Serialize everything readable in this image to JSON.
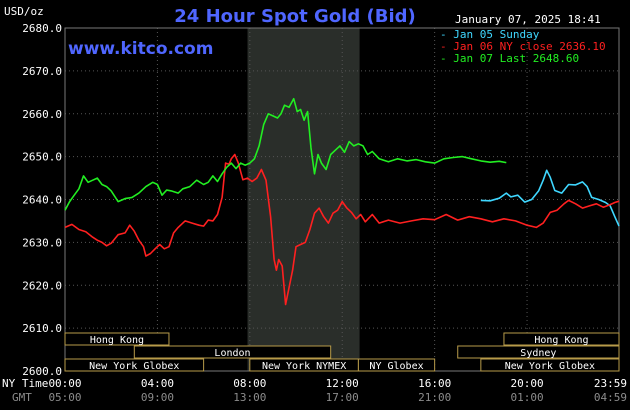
{
  "chart_data": {
    "type": "line",
    "title": "24 Hour Spot Gold (Bid)",
    "website": "www.kitco.com",
    "timestamp": "January 07, 2025 18:41",
    "ylabel": "USD/oz",
    "ylim": [
      2600,
      2680
    ],
    "yticks": [
      "2680.0",
      "2670.0",
      "2660.0",
      "2650.0",
      "2640.0",
      "2630.0",
      "2620.0",
      "2610.0",
      "2600.0"
    ],
    "x_ny_label": "NY Time",
    "x_gmt_label": "GMT",
    "x_ny_ticks": [
      "00:00",
      "04:00",
      "08:00",
      "12:00",
      "16:00",
      "20:00",
      "23:59"
    ],
    "x_gmt_ticks": [
      "05:00",
      "09:00",
      "13:00",
      "17:00",
      "21:00",
      "01:00",
      "04:59"
    ],
    "grid": true,
    "legend_position": "top-right",
    "highlight_range_hours": [
      7.9,
      12.75
    ],
    "series": [
      {
        "name": "Jan 05 Sunday",
        "color": "#3fd7ff",
        "points": [
          [
            18.0,
            2639.8
          ],
          [
            18.4,
            2639.7
          ],
          [
            18.8,
            2640.3
          ],
          [
            19.1,
            2641.5
          ],
          [
            19.3,
            2640.6
          ],
          [
            19.6,
            2641.0
          ],
          [
            19.9,
            2639.4
          ],
          [
            20.2,
            2640.0
          ],
          [
            20.5,
            2642.0
          ],
          [
            20.7,
            2644.5
          ],
          [
            20.85,
            2646.8
          ],
          [
            21.0,
            2645.2
          ],
          [
            21.2,
            2642.1
          ],
          [
            21.5,
            2641.5
          ],
          [
            21.8,
            2643.5
          ],
          [
            22.1,
            2643.4
          ],
          [
            22.4,
            2644.1
          ],
          [
            22.6,
            2643.0
          ],
          [
            22.8,
            2640.5
          ],
          [
            23.1,
            2640.0
          ],
          [
            23.4,
            2639.3
          ],
          [
            23.6,
            2638.5
          ],
          [
            23.8,
            2636.0
          ],
          [
            23.98,
            2633.8
          ]
        ]
      },
      {
        "name": "Jan 06 NY close 2636.10",
        "color": "#ff2020",
        "points": [
          [
            0.0,
            2633.5
          ],
          [
            0.3,
            2634.2
          ],
          [
            0.6,
            2633.0
          ],
          [
            0.9,
            2632.5
          ],
          [
            1.2,
            2631.2
          ],
          [
            1.4,
            2630.5
          ],
          [
            1.6,
            2630.0
          ],
          [
            1.8,
            2629.2
          ],
          [
            2.0,
            2629.8
          ],
          [
            2.3,
            2631.8
          ],
          [
            2.6,
            2632.2
          ],
          [
            2.8,
            2634.0
          ],
          [
            3.0,
            2632.6
          ],
          [
            3.2,
            2630.5
          ],
          [
            3.4,
            2629.0
          ],
          [
            3.5,
            2626.8
          ],
          [
            3.7,
            2627.4
          ],
          [
            3.9,
            2628.5
          ],
          [
            4.1,
            2629.5
          ],
          [
            4.3,
            2628.5
          ],
          [
            4.5,
            2629.0
          ],
          [
            4.7,
            2632.2
          ],
          [
            4.9,
            2633.5
          ],
          [
            5.2,
            2635.0
          ],
          [
            5.5,
            2634.5
          ],
          [
            5.8,
            2634.0
          ],
          [
            6.0,
            2633.8
          ],
          [
            6.2,
            2635.2
          ],
          [
            6.4,
            2635.0
          ],
          [
            6.6,
            2636.5
          ],
          [
            6.8,
            2640.5
          ],
          [
            6.95,
            2648.5
          ],
          [
            7.1,
            2648.2
          ],
          [
            7.2,
            2649.5
          ],
          [
            7.35,
            2650.5
          ],
          [
            7.5,
            2648.5
          ],
          [
            7.7,
            2644.6
          ],
          [
            7.9,
            2645.0
          ],
          [
            8.1,
            2644.2
          ],
          [
            8.3,
            2645.0
          ],
          [
            8.5,
            2647.0
          ],
          [
            8.7,
            2644.5
          ],
          [
            8.9,
            2636.0
          ],
          [
            9.05,
            2626.0
          ],
          [
            9.15,
            2623.5
          ],
          [
            9.25,
            2626.0
          ],
          [
            9.4,
            2624.5
          ],
          [
            9.55,
            2615.5
          ],
          [
            9.7,
            2619.5
          ],
          [
            9.85,
            2623.5
          ],
          [
            10.0,
            2629.0
          ],
          [
            10.2,
            2629.5
          ],
          [
            10.4,
            2630.0
          ],
          [
            10.6,
            2633.0
          ],
          [
            10.8,
            2636.8
          ],
          [
            11.0,
            2638.0
          ],
          [
            11.2,
            2636.0
          ],
          [
            11.4,
            2634.5
          ],
          [
            11.6,
            2636.8
          ],
          [
            11.8,
            2637.5
          ],
          [
            12.0,
            2639.5
          ],
          [
            12.2,
            2638.0
          ],
          [
            12.4,
            2637.0
          ],
          [
            12.6,
            2635.5
          ],
          [
            12.8,
            2636.5
          ],
          [
            13.0,
            2634.8
          ],
          [
            13.3,
            2636.5
          ],
          [
            13.6,
            2634.5
          ],
          [
            14.0,
            2635.2
          ],
          [
            14.5,
            2634.5
          ],
          [
            15.0,
            2635.0
          ],
          [
            15.5,
            2635.5
          ],
          [
            16.0,
            2635.3
          ],
          [
            16.5,
            2636.5
          ],
          [
            17.0,
            2635.2
          ],
          [
            17.5,
            2636.0
          ],
          [
            18.0,
            2635.5
          ],
          [
            18.5,
            2634.8
          ],
          [
            19.0,
            2635.5
          ],
          [
            19.5,
            2635.0
          ],
          [
            20.0,
            2634.0
          ],
          [
            20.4,
            2633.5
          ],
          [
            20.7,
            2634.5
          ],
          [
            21.0,
            2637.0
          ],
          [
            21.3,
            2637.5
          ],
          [
            21.6,
            2639.0
          ],
          [
            21.8,
            2639.8
          ],
          [
            22.1,
            2639.0
          ],
          [
            22.4,
            2638.0
          ],
          [
            22.7,
            2638.5
          ],
          [
            23.0,
            2639.0
          ],
          [
            23.3,
            2638.2
          ],
          [
            23.6,
            2638.8
          ],
          [
            23.8,
            2639.3
          ],
          [
            23.98,
            2639.6
          ]
        ]
      },
      {
        "name": "Jan 07 Last 2648.60",
        "color": "#22ee22",
        "points": [
          [
            0.0,
            2637.5
          ],
          [
            0.2,
            2639.5
          ],
          [
            0.4,
            2641.0
          ],
          [
            0.6,
            2642.5
          ],
          [
            0.8,
            2645.5
          ],
          [
            1.0,
            2644.0
          ],
          [
            1.2,
            2644.5
          ],
          [
            1.4,
            2645.0
          ],
          [
            1.6,
            2643.5
          ],
          [
            1.8,
            2643.0
          ],
          [
            2.0,
            2642.0
          ],
          [
            2.3,
            2639.5
          ],
          [
            2.6,
            2640.2
          ],
          [
            2.9,
            2640.5
          ],
          [
            3.2,
            2641.5
          ],
          [
            3.5,
            2643.0
          ],
          [
            3.8,
            2644.0
          ],
          [
            4.0,
            2643.5
          ],
          [
            4.2,
            2641.0
          ],
          [
            4.4,
            2642.2
          ],
          [
            4.6,
            2642.0
          ],
          [
            4.9,
            2641.5
          ],
          [
            5.1,
            2642.5
          ],
          [
            5.4,
            2643.0
          ],
          [
            5.7,
            2644.5
          ],
          [
            6.0,
            2643.5
          ],
          [
            6.2,
            2644.0
          ],
          [
            6.4,
            2645.5
          ],
          [
            6.6,
            2644.2
          ],
          [
            6.8,
            2646.0
          ],
          [
            7.0,
            2647.5
          ],
          [
            7.2,
            2648.5
          ],
          [
            7.4,
            2647.2
          ],
          [
            7.6,
            2648.5
          ],
          [
            7.8,
            2648.0
          ],
          [
            8.0,
            2648.5
          ],
          [
            8.2,
            2649.5
          ],
          [
            8.4,
            2652.5
          ],
          [
            8.6,
            2657.5
          ],
          [
            8.8,
            2660.0
          ],
          [
            9.0,
            2659.5
          ],
          [
            9.2,
            2659.0
          ],
          [
            9.35,
            2660.0
          ],
          [
            9.5,
            2662.0
          ],
          [
            9.7,
            2661.5
          ],
          [
            9.9,
            2663.5
          ],
          [
            10.05,
            2660.5
          ],
          [
            10.2,
            2661.0
          ],
          [
            10.35,
            2658.5
          ],
          [
            10.5,
            2660.5
          ],
          [
            10.65,
            2652.0
          ],
          [
            10.8,
            2646.0
          ],
          [
            10.95,
            2650.5
          ],
          [
            11.1,
            2648.5
          ],
          [
            11.3,
            2647.0
          ],
          [
            11.5,
            2650.5
          ],
          [
            11.7,
            2651.5
          ],
          [
            11.9,
            2652.5
          ],
          [
            12.1,
            2651.0
          ],
          [
            12.3,
            2653.5
          ],
          [
            12.5,
            2652.5
          ],
          [
            12.7,
            2653.0
          ],
          [
            12.9,
            2652.5
          ],
          [
            13.1,
            2650.5
          ],
          [
            13.3,
            2651.2
          ],
          [
            13.6,
            2649.5
          ],
          [
            14.0,
            2648.8
          ],
          [
            14.4,
            2649.5
          ],
          [
            14.8,
            2649.0
          ],
          [
            15.2,
            2649.3
          ],
          [
            15.6,
            2648.8
          ],
          [
            16.0,
            2648.5
          ],
          [
            16.4,
            2649.5
          ],
          [
            16.8,
            2649.8
          ],
          [
            17.2,
            2650.0
          ],
          [
            17.6,
            2649.5
          ],
          [
            18.0,
            2649.0
          ],
          [
            18.4,
            2648.7
          ],
          [
            18.8,
            2648.9
          ],
          [
            19.1,
            2648.6
          ]
        ]
      }
    ],
    "sessions": [
      {
        "name": "Hong Kong",
        "row": 0,
        "start": 0.0,
        "end": 4.5
      },
      {
        "name": "Hong Kong",
        "row": 0,
        "start": 19.0,
        "end": 23.98
      },
      {
        "name": "London",
        "row": 1,
        "start": 3.0,
        "end": 11.5
      },
      {
        "name": "Sydney",
        "row": 1,
        "start": 17.0,
        "end": 23.98
      },
      {
        "name": "New York Globex",
        "row": 2,
        "start": 0.0,
        "end": 6.0
      },
      {
        "name": "New York NYMEX",
        "row": 2,
        "start": 8.0,
        "end": 12.7
      },
      {
        "name": "NY Globex",
        "row": 2,
        "start": 12.7,
        "end": 16.0
      },
      {
        "name": "New York Globex",
        "row": 2,
        "start": 18.0,
        "end": 23.98
      }
    ]
  }
}
